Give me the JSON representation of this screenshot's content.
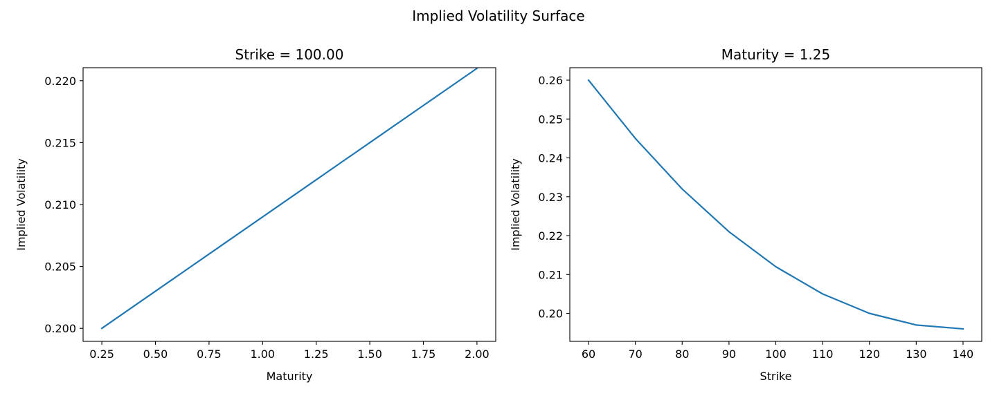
{
  "suptitle": "Implied Volatility Surface",
  "chart_data": [
    {
      "type": "line",
      "title": "Strike = 100.00",
      "xlabel": "Maturity",
      "ylabel": "Implied Volatility",
      "xlim": [
        0.1625,
        2.0875
      ],
      "ylim": [
        0.19895,
        0.22105
      ],
      "xticks": [
        "0.25",
        "0.50",
        "0.75",
        "1.00",
        "1.25",
        "1.50",
        "1.75",
        "2.00"
      ],
      "yticks": [
        "0.200",
        "0.205",
        "0.210",
        "0.215",
        "0.220"
      ],
      "grid": false,
      "series": [
        {
          "color": "#1f77b4",
          "x": [
            0.25,
            0.5,
            0.75,
            1.0,
            1.25,
            1.5,
            1.75,
            2.0
          ],
          "y": [
            0.2,
            0.203,
            0.206,
            0.209,
            0.212,
            0.215,
            0.218,
            0.221
          ]
        }
      ]
    },
    {
      "type": "line",
      "title": "Maturity = 1.25",
      "xlabel": "Strike",
      "ylabel": "Implied Volatility",
      "xlim": [
        56,
        144
      ],
      "ylim": [
        0.1928,
        0.2632
      ],
      "xticks": [
        "60",
        "70",
        "80",
        "90",
        "100",
        "110",
        "120",
        "130",
        "140"
      ],
      "yticks": [
        "0.20",
        "0.21",
        "0.22",
        "0.23",
        "0.24",
        "0.25",
        "0.26"
      ],
      "grid": false,
      "series": [
        {
          "color": "#1f77b4",
          "x": [
            60,
            70,
            80,
            90,
            100,
            110,
            120,
            130,
            140
          ],
          "y": [
            0.26,
            0.245,
            0.232,
            0.221,
            0.212,
            0.205,
            0.2,
            0.197,
            0.196
          ]
        }
      ]
    }
  ]
}
